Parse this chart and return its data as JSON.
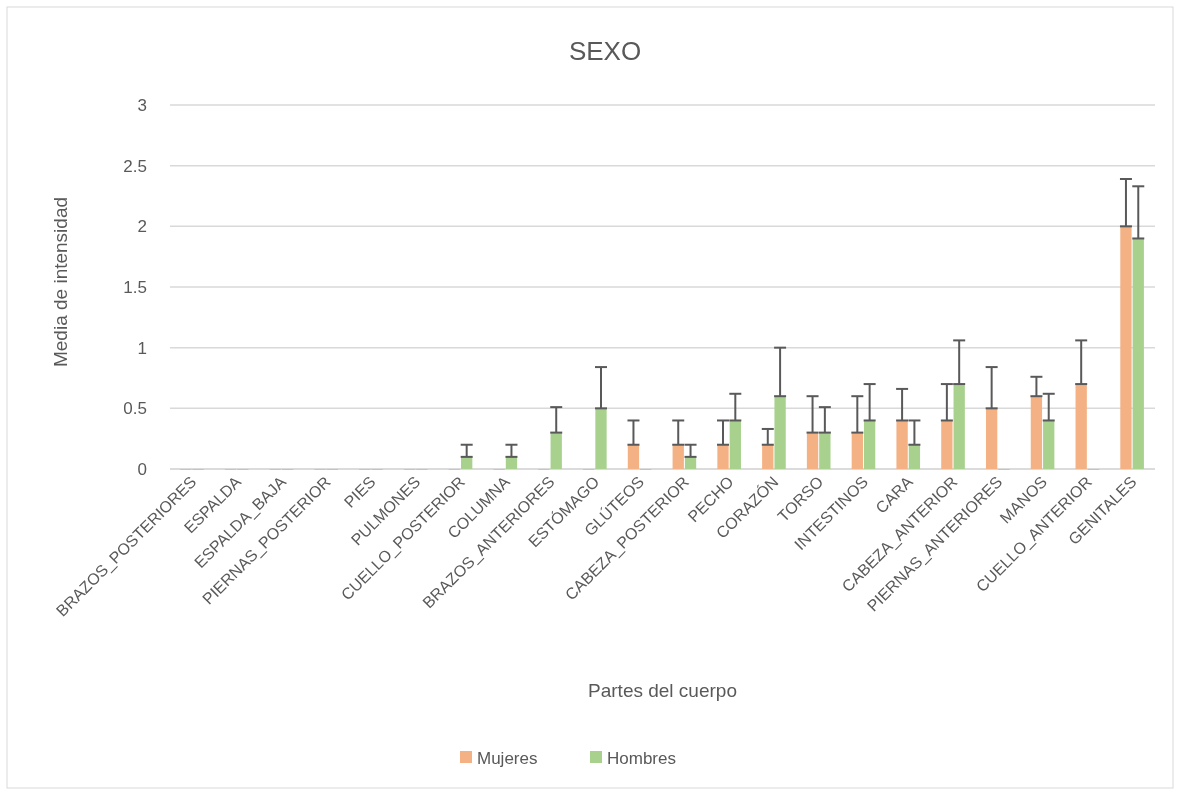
{
  "chart_data": {
    "type": "bar",
    "title": "SEXO",
    "xlabel": "Partes del cuerpo",
    "ylabel": "Media de intensidad",
    "categories": [
      "BRAZOS_POSTERIORES",
      "ESPALDA",
      "ESPALDA_BAJA",
      "PIERNAS_POSTERIOR",
      "PIES",
      "PULMONES",
      "CUELLO_POSTERIOR",
      "COLUMNA",
      "BRAZOS_ANTERIORES",
      "ESTÓMAGO",
      "GLÚTEOS",
      "CABEZA_POSTERIOR",
      "PECHO",
      "CORAZÓN",
      "TORSO",
      "INTESTINOS",
      "CARA",
      "CABEZA_ANTERIOR",
      "PIERNAS_ANTERIORES",
      "MANOS",
      "CUELLO_ANTERIOR",
      "GENITALES"
    ],
    "series": [
      {
        "name": "Mujeres",
        "color": "#f4b183",
        "values": [
          0,
          0,
          0,
          0,
          0,
          0,
          0,
          0,
          0,
          0,
          0.2,
          0.2,
          0.2,
          0.2,
          0.3,
          0.3,
          0.4,
          0.4,
          0.5,
          0.6,
          0.7,
          2.0
        ],
        "errors": [
          null,
          null,
          null,
          null,
          null,
          null,
          null,
          null,
          null,
          null,
          [
            0.2,
            0.4
          ],
          [
            0.2,
            0.4
          ],
          [
            0.2,
            0.4
          ],
          [
            0.2,
            0.33
          ],
          [
            0.3,
            0.6
          ],
          [
            0.3,
            0.6
          ],
          [
            0.4,
            0.66
          ],
          [
            0.4,
            0.7
          ],
          [
            0.5,
            0.84
          ],
          [
            0.6,
            0.76
          ],
          [
            0.7,
            1.06
          ],
          [
            2.0,
            2.39
          ]
        ]
      },
      {
        "name": "Hombres",
        "color": "#a9d18e",
        "values": [
          0,
          0,
          0,
          0,
          0,
          0,
          0.1,
          0.1,
          0.3,
          0.5,
          0,
          0.1,
          0.4,
          0.6,
          0.3,
          0.4,
          0.2,
          0.7,
          0,
          0.4,
          0,
          1.9
        ],
        "errors": [
          null,
          null,
          null,
          null,
          null,
          null,
          [
            0.1,
            0.2
          ],
          [
            0.1,
            0.2
          ],
          [
            0.3,
            0.51
          ],
          [
            0.5,
            0.84
          ],
          null,
          [
            0.1,
            0.2
          ],
          [
            0.4,
            0.62
          ],
          [
            0.6,
            1.0
          ],
          [
            0.3,
            0.51
          ],
          [
            0.4,
            0.7
          ],
          [
            0.2,
            0.4
          ],
          [
            0.7,
            1.06
          ],
          null,
          [
            0.4,
            0.62
          ],
          null,
          [
            1.9,
            2.33
          ]
        ]
      }
    ],
    "ylim": [
      0,
      3
    ],
    "yticks": [
      0,
      0.5,
      1,
      1.5,
      2,
      2.5,
      3
    ],
    "grid": "y",
    "legend": "bottom"
  }
}
